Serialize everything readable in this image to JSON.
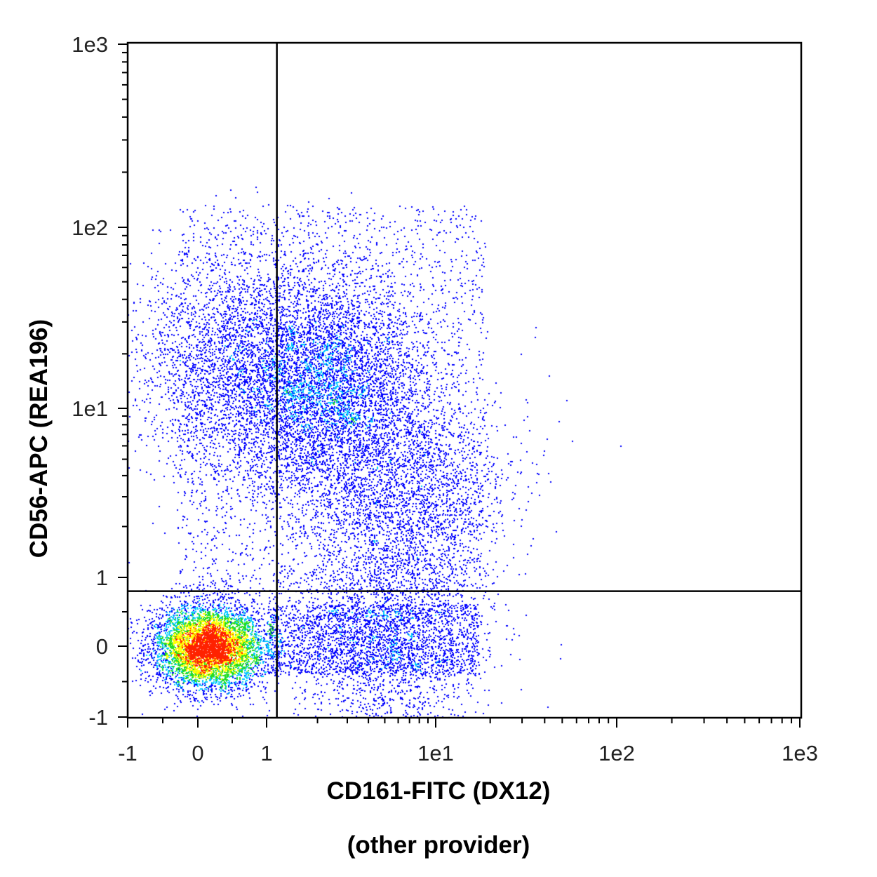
{
  "chart_data": {
    "type": "scatter",
    "style": "density dot plot (pseudocolor)",
    "xlabel": "CD161-FITC (DX12)",
    "xlabel_sub": "(other provider)",
    "ylabel": "CD56-APC (REA196)",
    "x_scale": "biexponential",
    "y_scale": "biexponential",
    "x_ticks": [
      "-1",
      "0",
      "1",
      "1e1",
      "1e2",
      "1e3"
    ],
    "y_ticks": [
      "1e3",
      "1e2",
      "1e1",
      "1",
      "0",
      "-1"
    ],
    "xlim": [
      -1,
      1000
    ],
    "ylim": [
      -1,
      1000
    ],
    "grid": false,
    "quadrant_gate": {
      "x": 1.15,
      "y": 0.8
    },
    "populations": [
      {
        "name": "",
        "center": [
          0.15,
          0.0
        ],
        "spread": "dense",
        "density": "high"
      },
      {
        "name": "",
        "center": [
          2.2,
          13
        ],
        "spread": "broad",
        "density": "medium"
      },
      {
        "name": "",
        "center": [
          0.4,
          18
        ],
        "spread": "broad",
        "density": "low"
      },
      {
        "name": "",
        "center": [
          5,
          0.1
        ],
        "spread": "broad",
        "density": "low"
      },
      {
        "name": "",
        "center": [
          7,
          3
        ],
        "spread": "broad",
        "density": "low"
      }
    ],
    "colors": {
      "low": "#0000ff",
      "mid": "#00c8ff",
      "midhigh": "#22dd22",
      "high": "#ffff00",
      "peak": "#ff2200"
    }
  }
}
